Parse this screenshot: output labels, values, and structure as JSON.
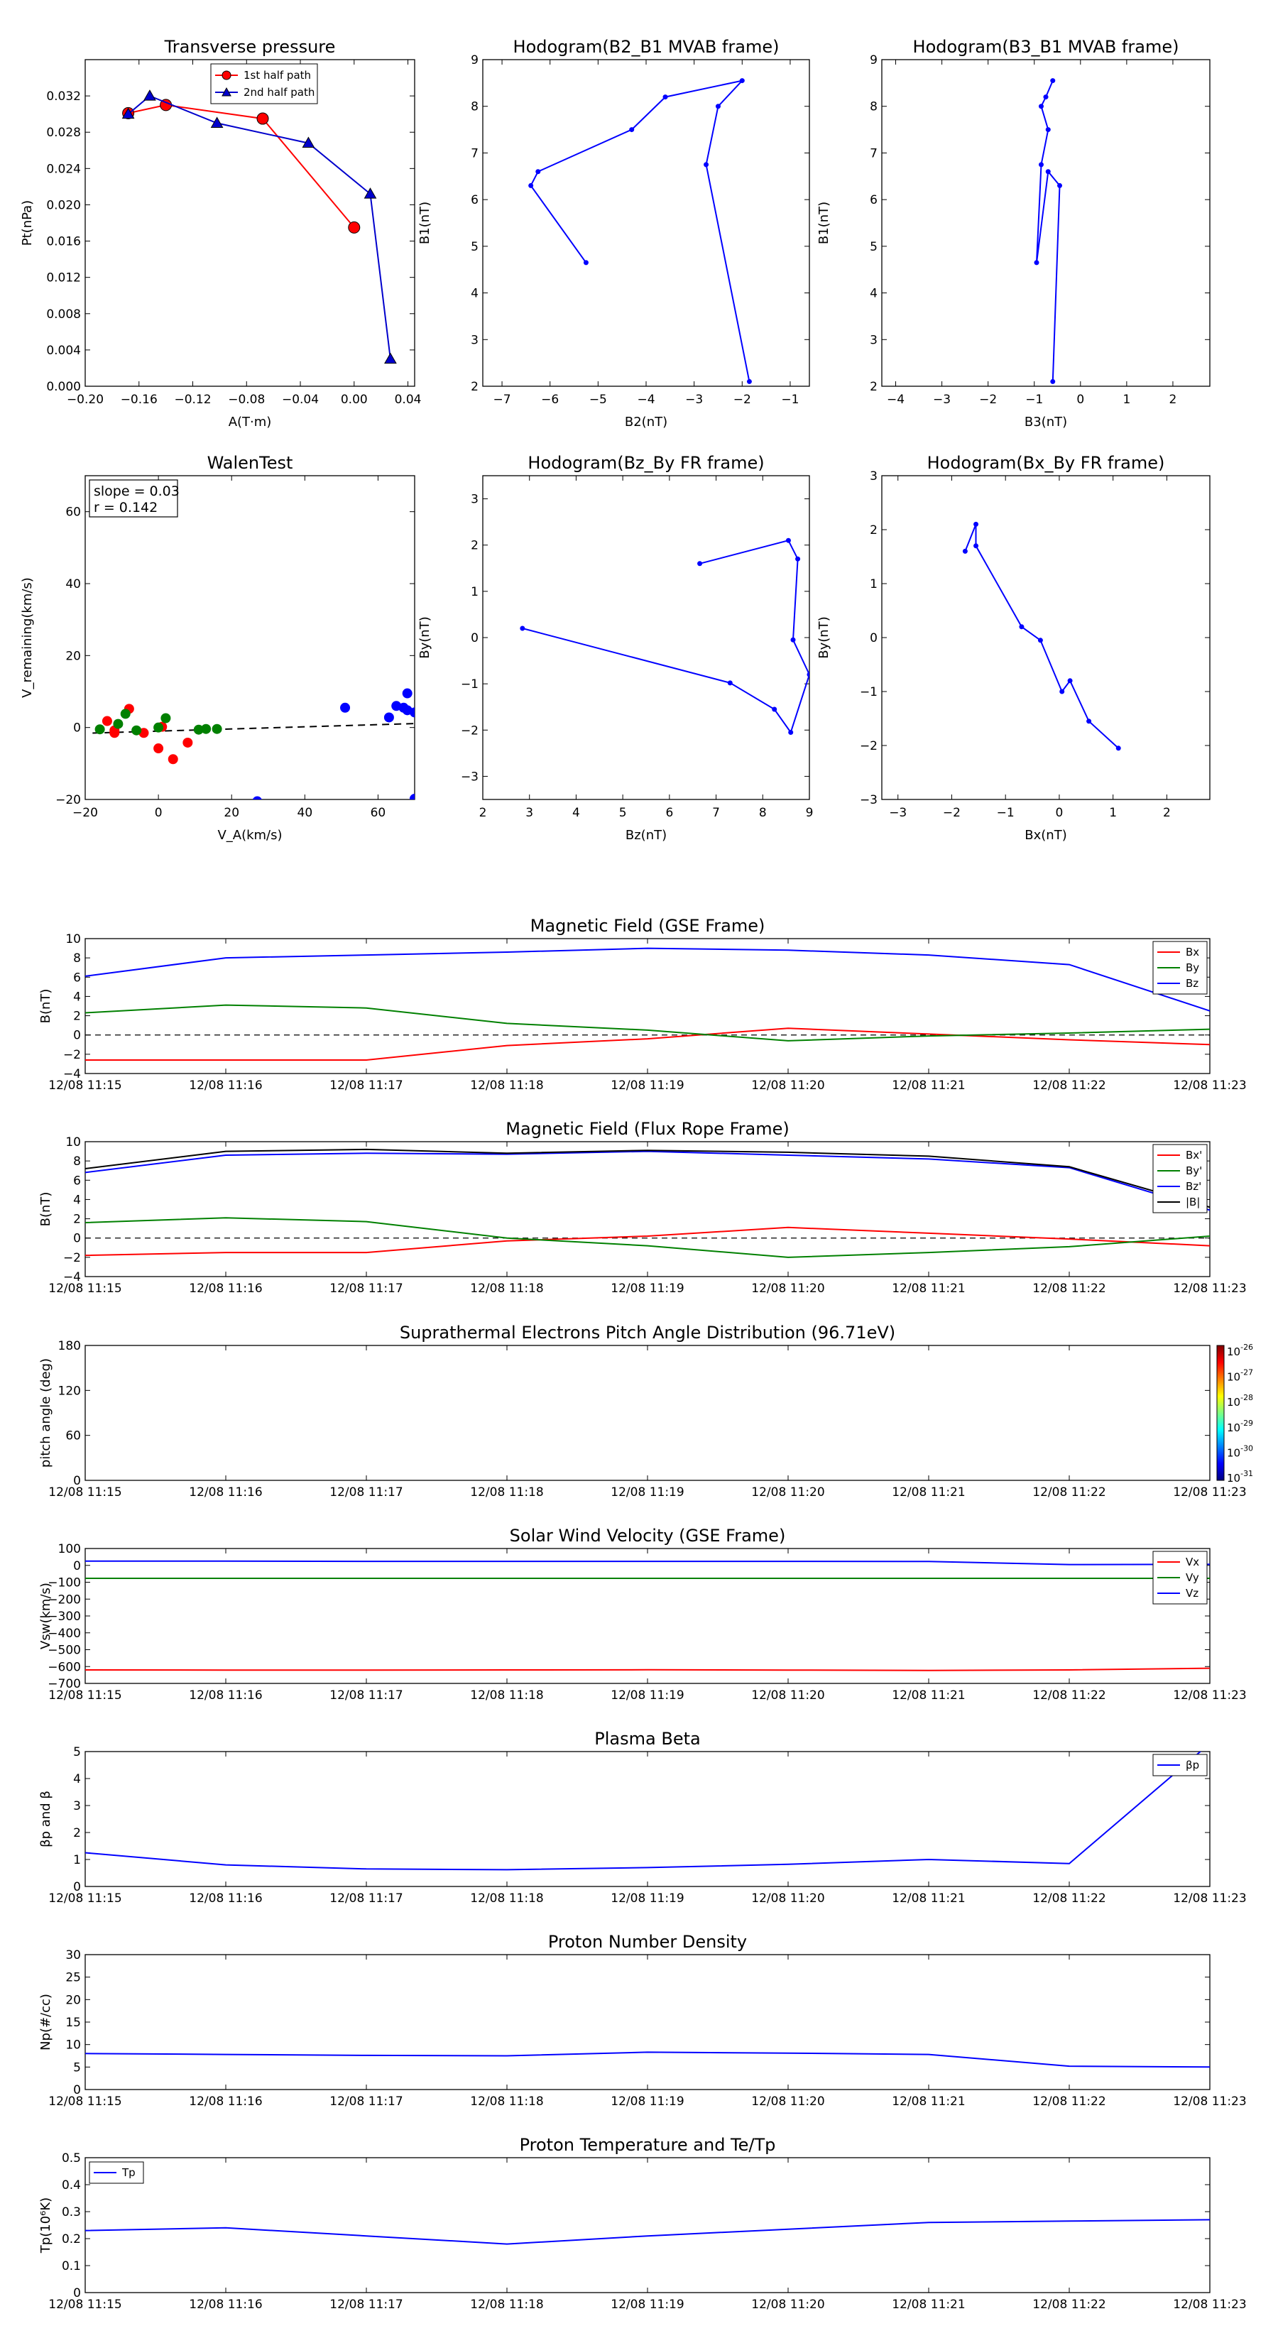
{
  "figure": {
    "time_ticks": [
      "12/08 11:15",
      "12/08 11:16",
      "12/08 11:17",
      "12/08 11:18",
      "12/08 11:19",
      "12/08 11:20",
      "12/08 11:21",
      "12/08 11:22",
      "12/08 11:23"
    ]
  },
  "colors": {
    "red": "#ff0000",
    "green": "#008000",
    "blue": "#0000ff",
    "black": "#000000",
    "axis": "#000000"
  },
  "chart_data": [
    {
      "id": "transverse-pressure",
      "type": "line",
      "title": "Transverse pressure",
      "xlabel": "A(T·m)",
      "ylabel": "Pt(nPa)",
      "xlim": [
        -0.2,
        0.045
      ],
      "ylim": [
        0.0,
        0.036
      ],
      "xticks": [
        -0.2,
        -0.16,
        -0.12,
        -0.08,
        -0.04,
        0.0,
        0.04
      ],
      "xtick_labels": [
        "−0.20",
        "−0.16",
        "−0.12",
        "−0.08",
        "−0.04",
        "0.00",
        "0.04"
      ],
      "yticks": [
        0.0,
        0.004,
        0.008,
        0.012,
        0.016,
        0.02,
        0.024,
        0.028,
        0.032
      ],
      "ytick_labels": [
        "0.000",
        "0.004",
        "0.008",
        "0.012",
        "0.016",
        "0.020",
        "0.024",
        "0.028",
        "0.032"
      ],
      "legend": "top-center",
      "series": [
        {
          "name": "1st half path",
          "color": "#ff0000",
          "marker": "circle",
          "x": [
            -0.168,
            -0.14,
            -0.068,
            0.0
          ],
          "y": [
            0.0301,
            0.031,
            0.0295,
            0.0175
          ]
        },
        {
          "name": "2nd half path",
          "color": "#0000cc",
          "marker": "triangle",
          "x": [
            -0.168,
            -0.152,
            -0.102,
            -0.034,
            0.012,
            0.027
          ],
          "y": [
            0.03,
            0.032,
            0.029,
            0.0268,
            0.0212,
            0.003
          ]
        }
      ]
    },
    {
      "id": "hodogram-b2-b1",
      "type": "line",
      "title": "Hodogram(B2_B1 MVAB frame)",
      "xlabel": "B2(nT)",
      "ylabel": "B1(nT)",
      "xlim": [
        -7.4,
        -0.6
      ],
      "ylim": [
        2,
        9
      ],
      "xticks": [
        -7,
        -6,
        -5,
        -4,
        -3,
        -2,
        -1
      ],
      "xtick_labels": [
        "−7",
        "−6",
        "−5",
        "−4",
        "−3",
        "−2",
        "−1"
      ],
      "yticks": [
        2,
        3,
        4,
        5,
        6,
        7,
        8,
        9
      ],
      "ytick_labels": [
        "2",
        "3",
        "4",
        "5",
        "6",
        "7",
        "8",
        "9"
      ],
      "series": [
        {
          "name": "",
          "color": "#0000ff",
          "marker": "dot",
          "x": [
            -5.25,
            -6.4,
            -6.25,
            -4.3,
            -3.6,
            -2.0,
            -2.5,
            -2.75,
            -1.85
          ],
          "y": [
            4.65,
            6.3,
            6.6,
            7.5,
            8.2,
            8.55,
            8.0,
            6.75,
            2.1
          ]
        }
      ]
    },
    {
      "id": "hodogram-b3-b1",
      "type": "line",
      "title": "Hodogram(B3_B1 MVAB frame)",
      "xlabel": "B3(nT)",
      "ylabel": "B1(nT)",
      "xlim": [
        -4.3,
        2.8
      ],
      "ylim": [
        2,
        9
      ],
      "xticks": [
        -4,
        -3,
        -2,
        -1,
        0,
        1,
        2
      ],
      "xtick_labels": [
        "−4",
        "−3",
        "−2",
        "−1",
        "0",
        "1",
        "2"
      ],
      "yticks": [
        2,
        3,
        4,
        5,
        6,
        7,
        8,
        9
      ],
      "ytick_labels": [
        "2",
        "3",
        "4",
        "5",
        "6",
        "7",
        "8",
        "9"
      ],
      "series": [
        {
          "name": "",
          "color": "#0000ff",
          "marker": "dot",
          "x": [
            -0.6,
            -0.75,
            -0.85,
            -0.7,
            -0.85,
            -0.95,
            -0.7,
            -0.45,
            -0.6
          ],
          "y": [
            8.55,
            8.2,
            8.0,
            7.5,
            6.75,
            4.65,
            6.6,
            6.3,
            2.1
          ]
        }
      ]
    },
    {
      "id": "walen-test",
      "type": "scatter",
      "title": "WalenTest",
      "xlabel": "V_A(km/s)",
      "ylabel": "V_remaining(km/s)",
      "xlim": [
        -20,
        70
      ],
      "ylim": [
        -20,
        70
      ],
      "xticks": [
        -20,
        0,
        20,
        40,
        60
      ],
      "xtick_labels": [
        "−20",
        "0",
        "20",
        "40",
        "60"
      ],
      "yticks": [
        -20,
        0,
        20,
        40,
        60
      ],
      "ytick_labels": [
        "−20",
        "0",
        "20",
        "40",
        "60"
      ],
      "annotation": [
        "slope = 0.03",
        "r = 0.142"
      ],
      "fit_line": {
        "slope": 0.03,
        "intercept": -1.0,
        "x": [
          -18,
          70
        ]
      },
      "series": [
        {
          "name": "",
          "color": "#ff0000",
          "x": [
            -14,
            -12,
            -12,
            -8,
            -4,
            0,
            1,
            4,
            8
          ],
          "y": [
            1.8,
            -0.8,
            -1.5,
            5.2,
            -1.5,
            -5.8,
            0.2,
            -8.8,
            -4.2
          ]
        },
        {
          "name": "",
          "color": "#008000",
          "x": [
            -16,
            -11,
            -9,
            -6,
            0,
            2,
            11,
            13,
            16
          ],
          "y": [
            -0.5,
            1.0,
            3.8,
            -0.8,
            0.0,
            2.6,
            -0.6,
            -0.4,
            -0.4
          ]
        },
        {
          "name": "",
          "color": "#0000ff",
          "x": [
            27,
            51,
            63,
            65,
            67,
            68,
            68,
            70,
            70
          ],
          "y": [
            -20.5,
            5.5,
            2.8,
            6.0,
            5.5,
            9.5,
            4.8,
            4.2,
            -19.8
          ]
        }
      ]
    },
    {
      "id": "hodogram-bz-by",
      "type": "line",
      "title": "Hodogram(Bz_By FR frame)",
      "xlabel": "Bz(nT)",
      "ylabel": "By(nT)",
      "xlim": [
        2,
        9
      ],
      "ylim": [
        -3.5,
        3.5
      ],
      "xticks": [
        2,
        3,
        4,
        5,
        6,
        7,
        8,
        9
      ],
      "xtick_labels": [
        "2",
        "3",
        "4",
        "5",
        "6",
        "7",
        "8",
        "9"
      ],
      "yticks": [
        -3,
        -2,
        -1,
        0,
        1,
        2,
        3
      ],
      "ytick_labels": [
        "−3",
        "−2",
        "−1",
        "0",
        "1",
        "2",
        "3"
      ],
      "series": [
        {
          "name": "",
          "color": "#0000ff",
          "marker": "dot",
          "x": [
            6.65,
            8.55,
            8.75,
            8.65,
            9.0,
            8.6,
            8.25,
            7.3,
            2.85
          ],
          "y": [
            1.6,
            2.1,
            1.7,
            -0.05,
            -0.8,
            -2.05,
            -1.55,
            -0.98,
            0.2
          ]
        }
      ]
    },
    {
      "id": "hodogram-bx-by",
      "type": "line",
      "title": "Hodogram(Bx_By FR frame)",
      "xlabel": "Bx(nT)",
      "ylabel": "By(nT)",
      "xlim": [
        -3.3,
        2.8
      ],
      "ylim": [
        -3,
        3
      ],
      "xticks": [
        -3,
        -2,
        -1,
        0,
        1,
        2
      ],
      "xtick_labels": [
        "−3",
        "−2",
        "−1",
        "0",
        "1",
        "2"
      ],
      "yticks": [
        -3,
        -2,
        -1,
        0,
        1,
        2,
        3
      ],
      "ytick_labels": [
        "−3",
        "−2",
        "−1",
        "0",
        "1",
        "2",
        "3"
      ],
      "series": [
        {
          "name": "",
          "color": "#0000ff",
          "marker": "dot",
          "x": [
            -1.75,
            -1.55,
            -1.55,
            -0.7,
            -0.35,
            0.05,
            0.2,
            0.55,
            1.1
          ],
          "y": [
            1.6,
            2.1,
            1.7,
            0.2,
            -0.05,
            -1.0,
            -0.8,
            -1.55,
            -2.05
          ]
        }
      ]
    },
    {
      "id": "mag-field-gse",
      "type": "line",
      "title": "Magnetic Field (GSE Frame)",
      "ylabel": "B(nT)",
      "xlim": [
        0,
        8
      ],
      "ylim": [
        -4,
        10
      ],
      "yticks": [
        -4,
        -2,
        0,
        2,
        4,
        6,
        8,
        10
      ],
      "ytick_labels": [
        "−4",
        "−2",
        "0",
        "2",
        "4",
        "6",
        "8",
        "10"
      ],
      "zero_line": true,
      "legend": "top-right",
      "series": [
        {
          "name": "Bx",
          "color": "#ff0000",
          "x": [
            0,
            1,
            2,
            3,
            4,
            5,
            6,
            7,
            8
          ],
          "y": [
            -2.6,
            -2.6,
            -2.6,
            -1.1,
            -0.4,
            0.7,
            0.1,
            -0.5,
            -1.0
          ]
        },
        {
          "name": "By",
          "color": "#008000",
          "x": [
            0,
            1,
            2,
            3,
            4,
            5,
            6,
            7,
            8
          ],
          "y": [
            2.3,
            3.1,
            2.8,
            1.2,
            0.5,
            -0.6,
            -0.1,
            0.2,
            0.6
          ]
        },
        {
          "name": "Bz",
          "color": "#0000ff",
          "x": [
            0,
            1,
            2,
            3,
            4,
            5,
            6,
            7,
            8
          ],
          "y": [
            6.1,
            8.0,
            8.3,
            8.6,
            9.0,
            8.8,
            8.3,
            7.3,
            2.5
          ]
        }
      ]
    },
    {
      "id": "mag-field-fr",
      "type": "line",
      "title": "Magnetic Field (Flux Rope Frame)",
      "ylabel": "B(nT)",
      "xlim": [
        0,
        8
      ],
      "ylim": [
        -4,
        10
      ],
      "yticks": [
        -4,
        -2,
        0,
        2,
        4,
        6,
        8,
        10
      ],
      "ytick_labels": [
        "−4",
        "−2",
        "0",
        "2",
        "4",
        "6",
        "8",
        "10"
      ],
      "zero_line": true,
      "legend": "top-right",
      "series": [
        {
          "name": "Bx'",
          "color": "#ff0000",
          "x": [
            0,
            1,
            2,
            3,
            4,
            5,
            6,
            7,
            8
          ],
          "y": [
            -1.8,
            -1.5,
            -1.5,
            -0.3,
            0.2,
            1.1,
            0.5,
            -0.1,
            -0.8
          ]
        },
        {
          "name": "By'",
          "color": "#008000",
          "x": [
            0,
            1,
            2,
            3,
            4,
            5,
            6,
            7,
            8
          ],
          "y": [
            1.6,
            2.1,
            1.7,
            0.0,
            -0.8,
            -2.0,
            -1.5,
            -0.9,
            0.2
          ]
        },
        {
          "name": "Bz'",
          "color": "#0000ff",
          "x": [
            0,
            1,
            2,
            3,
            4,
            5,
            6,
            7,
            8
          ],
          "y": [
            6.8,
            8.6,
            8.8,
            8.7,
            9.0,
            8.6,
            8.2,
            7.3,
            2.9
          ]
        },
        {
          "name": "|B|",
          "color": "#000000",
          "x": [
            0,
            1,
            2,
            3,
            4,
            5,
            6,
            7,
            8
          ],
          "y": [
            7.2,
            9.0,
            9.2,
            8.8,
            9.1,
            8.9,
            8.5,
            7.4,
            3.2
          ]
        }
      ]
    },
    {
      "id": "pitch-angle",
      "type": "heatmap",
      "title": "Suprathermal Electrons Pitch Angle Distribution (96.71eV)",
      "ylabel": "pitch angle (deg)",
      "xlim": [
        0,
        8
      ],
      "ylim": [
        0,
        180
      ],
      "yticks": [
        0,
        60,
        120,
        180
      ],
      "ytick_labels": [
        "0",
        "60",
        "120",
        "180"
      ],
      "colorbar": {
        "labels": [
          "10",
          "10",
          "10",
          "10",
          "10",
          "10"
        ],
        "exponents": [
          "-26",
          "-27",
          "-28",
          "-29",
          "-30",
          "-31"
        ],
        "colors": [
          "#7f0000",
          "#ff0000",
          "#ff8000",
          "#ffff00",
          "#80ff80",
          "#00ffff",
          "#0080ff",
          "#0000ff",
          "#00007f"
        ]
      },
      "values": []
    },
    {
      "id": "solar-wind-velocity",
      "type": "line",
      "title": "Solar Wind Velocity (GSE Frame)",
      "ylabel": "Vsw(km/s)",
      "xlim": [
        0,
        8
      ],
      "ylim": [
        -700,
        100
      ],
      "yticks": [
        -700,
        -600,
        -500,
        -400,
        -300,
        -200,
        -100,
        0,
        100
      ],
      "ytick_labels": [
        "−700",
        "−600",
        "−500",
        "−400",
        "−300",
        "−200",
        "−100",
        "0",
        "100"
      ],
      "legend": "top-right",
      "series": [
        {
          "name": "Vx",
          "color": "#ff0000",
          "x": [
            0,
            1,
            2,
            3,
            4,
            5,
            6,
            7,
            8
          ],
          "y": [
            -620,
            -621,
            -621,
            -620,
            -619,
            -621,
            -623,
            -620,
            -610
          ]
        },
        {
          "name": "Vy",
          "color": "#008000",
          "x": [
            0,
            1,
            2,
            3,
            4,
            5,
            6,
            7,
            8
          ],
          "y": [
            -77,
            -77,
            -77,
            -77,
            -77,
            -77,
            -77,
            -77,
            -77
          ]
        },
        {
          "name": "Vz",
          "color": "#0000ff",
          "x": [
            0,
            1,
            2,
            3,
            4,
            5,
            6,
            7,
            8
          ],
          "y": [
            25,
            25,
            24,
            24,
            24,
            24,
            23,
            5,
            6
          ]
        }
      ]
    },
    {
      "id": "plasma-beta",
      "type": "line",
      "title": "Plasma Beta",
      "ylabel": "βp and β",
      "xlim": [
        0,
        8
      ],
      "ylim": [
        0,
        5
      ],
      "yticks": [
        0,
        1,
        2,
        3,
        4,
        5
      ],
      "ytick_labels": [
        "0",
        "1",
        "2",
        "3",
        "4",
        "5"
      ],
      "legend": "top-right",
      "series": [
        {
          "name": "βp",
          "color": "#0000ff",
          "x": [
            0,
            1,
            2,
            3,
            4,
            5,
            6,
            7,
            8
          ],
          "y": [
            1.25,
            0.8,
            0.65,
            0.62,
            0.7,
            0.82,
            1.0,
            0.85,
            5.3
          ]
        }
      ]
    },
    {
      "id": "proton-density",
      "type": "line",
      "title": "Proton Number Density",
      "ylabel": "Np(#/cc)",
      "xlim": [
        0,
        8
      ],
      "ylim": [
        0,
        30
      ],
      "yticks": [
        0,
        5,
        10,
        15,
        20,
        25,
        30
      ],
      "ytick_labels": [
        "0",
        "5",
        "10",
        "15",
        "20",
        "25",
        "30"
      ],
      "series": [
        {
          "name": "",
          "color": "#0000ff",
          "x": [
            0,
            1,
            2,
            3,
            4,
            5,
            6,
            7,
            8
          ],
          "y": [
            8.0,
            7.8,
            7.6,
            7.5,
            8.3,
            8.1,
            7.8,
            5.2,
            5.0
          ]
        }
      ]
    },
    {
      "id": "proton-temperature",
      "type": "line",
      "title": "Proton Temperature and Te/Tp",
      "ylabel": "Tp(10⁶K)",
      "xlim": [
        0,
        8
      ],
      "ylim": [
        0,
        0.5
      ],
      "yticks": [
        0,
        0.1,
        0.2,
        0.3,
        0.4,
        0.5
      ],
      "ytick_labels": [
        "0",
        "0.1",
        "0.2",
        "0.3",
        "0.4",
        "0.5"
      ],
      "legend": "top-left",
      "series": [
        {
          "name": "Tp",
          "color": "#0000ff",
          "x": [
            0,
            1,
            2,
            3,
            4,
            5,
            6,
            7,
            8
          ],
          "y": [
            0.23,
            0.24,
            0.21,
            0.18,
            0.21,
            0.235,
            0.26,
            0.265,
            0.27
          ]
        }
      ]
    }
  ]
}
